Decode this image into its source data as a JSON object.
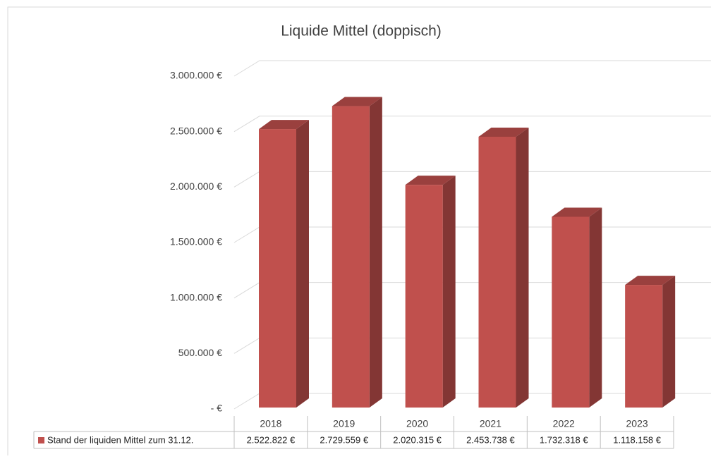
{
  "chart_data": {
    "type": "bar3d",
    "title": "Liquide Mittel (doppisch)",
    "categories": [
      "2018",
      "2019",
      "2020",
      "2021",
      "2022",
      "2023"
    ],
    "series": [
      {
        "name": "Stand der liquiden Mittel zum 31.12.",
        "color": "#c0504d",
        "values": [
          2522822,
          2729559,
          2020315,
          2453738,
          1732318,
          1118158
        ],
        "value_labels": [
          "2.522.822 €",
          "2.729.559 €",
          "2.020.315 €",
          "2.453.738 €",
          "1.732.318 €",
          "1.118.158 €"
        ]
      }
    ],
    "ylim": [
      0,
      3000000
    ],
    "yticks": [
      {
        "value": 0,
        "label": "-   €"
      },
      {
        "value": 500000,
        "label": "500.000 €"
      },
      {
        "value": 1000000,
        "label": "1.000.000 €"
      },
      {
        "value": 1500000,
        "label": "1.500.000 €"
      },
      {
        "value": 2000000,
        "label": "2.000.000 €"
      },
      {
        "value": 2500000,
        "label": "2.500.000 €"
      },
      {
        "value": 3000000,
        "label": "3.000.000 €"
      }
    ],
    "grid": true,
    "data_table": true
  }
}
